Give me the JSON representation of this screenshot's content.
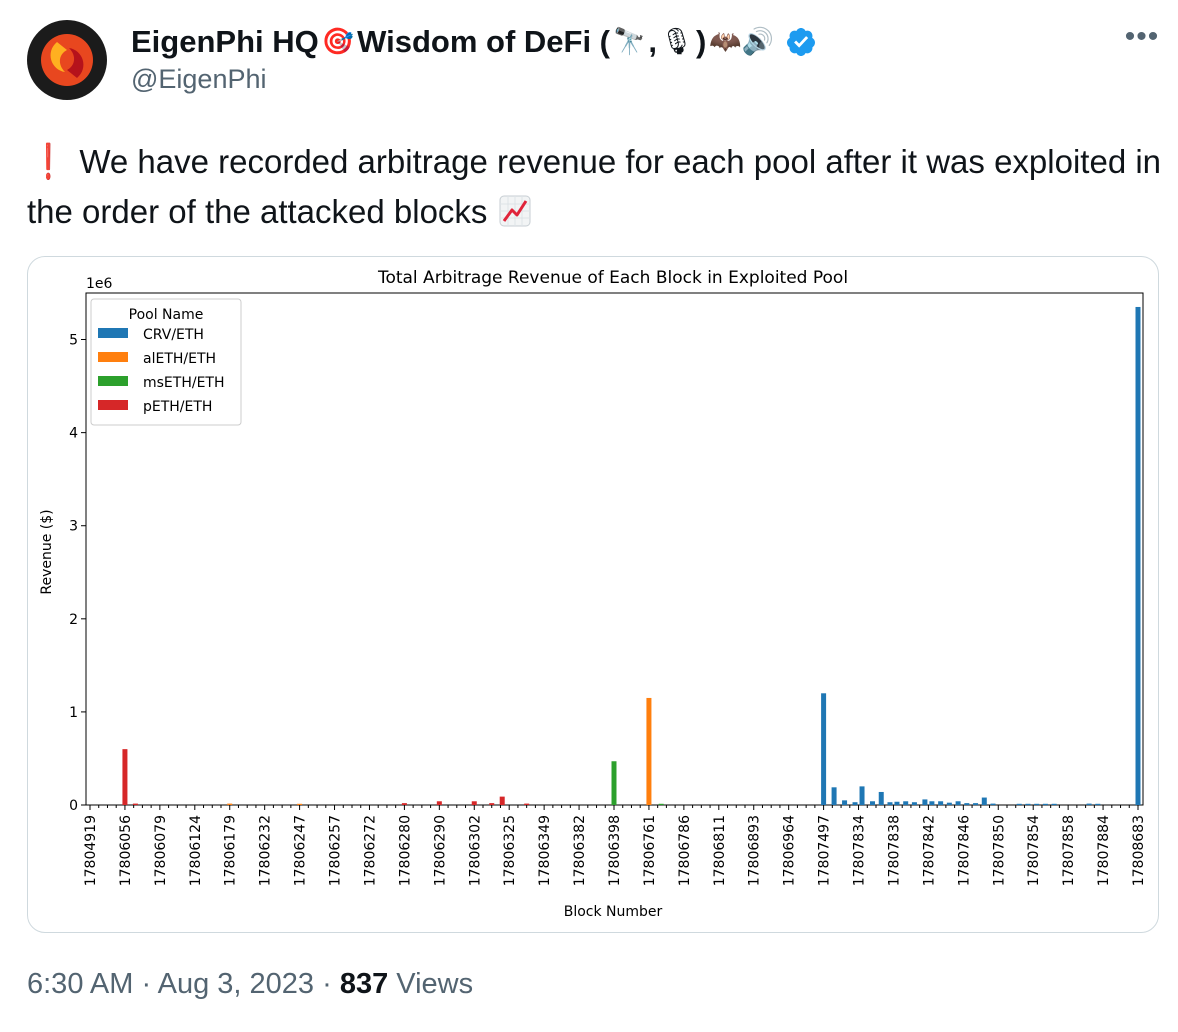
{
  "tweet": {
    "display_name": "EigenPhi HQ",
    "name_emoji_1": "🎯",
    "name_suffix": "Wisdom of DeFi (",
    "name_emoji_2": "🔭",
    "name_sep": ",",
    "name_emoji_3": "🎙",
    "name_close": ")",
    "name_emoji_4": "🦇🔊",
    "handle": "@EigenPhi",
    "more_icon": "more-horizontal-icon",
    "text_exclaim": "❗",
    "text": "We have recorded arbitrage revenue for each pool after it was exploited in the order of the attacked blocks",
    "time": "6:30 AM",
    "date": "Aug 3, 2023",
    "views_count": "837",
    "views_label": "Views",
    "separator": "·",
    "verified_color": "#1d9bf0"
  },
  "chart_data": {
    "type": "bar",
    "title": "Total Arbitrage Revenue of Each Block in Exploited Pool",
    "xlabel": "Block Number",
    "ylabel": "Revenue ($)",
    "y_scale_label": "1e6",
    "ylim": [
      0,
      5500000
    ],
    "yticks": [
      0,
      1,
      2,
      3,
      4,
      5
    ],
    "legend_title": "Pool Name",
    "legend_position": "upper-left",
    "grid": false,
    "x_tick_labels": [
      "17804919",
      "17806056",
      "17806079",
      "17806124",
      "17806179",
      "17806232",
      "17806247",
      "17806257",
      "17806272",
      "17806280",
      "17806290",
      "17806302",
      "17806325",
      "17806349",
      "17806382",
      "17806398",
      "17806761",
      "17806786",
      "17806811",
      "17806893",
      "17806964",
      "17807497",
      "17807834",
      "17807838",
      "17807842",
      "17807846",
      "17807850",
      "17807854",
      "17807858",
      "17807884",
      "17808683"
    ],
    "series": [
      {
        "name": "CRV/ETH",
        "color": "#1f77b4",
        "points": [
          [
            21,
            1200000
          ],
          [
            21.3,
            190000
          ],
          [
            21.6,
            50000
          ],
          [
            21.9,
            30000
          ],
          [
            22.1,
            200000
          ],
          [
            22.4,
            40000
          ],
          [
            22.65,
            140000
          ],
          [
            22.9,
            30000
          ],
          [
            23.1,
            35000
          ],
          [
            23.35,
            40000
          ],
          [
            23.6,
            30000
          ],
          [
            23.9,
            60000
          ],
          [
            24.1,
            40000
          ],
          [
            24.35,
            40000
          ],
          [
            24.6,
            25000
          ],
          [
            24.85,
            40000
          ],
          [
            25.1,
            20000
          ],
          [
            25.35,
            20000
          ],
          [
            25.6,
            80000
          ],
          [
            25.85,
            15000
          ],
          [
            26.6,
            10000
          ],
          [
            26.85,
            10000
          ],
          [
            27.1,
            10000
          ],
          [
            27.35,
            10000
          ],
          [
            27.6,
            10000
          ],
          [
            28.6,
            15000
          ],
          [
            28.85,
            10000
          ],
          [
            30,
            5350000
          ]
        ]
      },
      {
        "name": "alETH/ETH",
        "color": "#ff7f0e",
        "points": [
          [
            16,
            1150000
          ],
          [
            4,
            15000
          ],
          [
            6,
            10000
          ]
        ]
      },
      {
        "name": "msETH/ETH",
        "color": "#2ca02c",
        "points": [
          [
            15,
            470000
          ],
          [
            16.35,
            12000
          ]
        ]
      },
      {
        "name": "pETH/ETH",
        "color": "#d62728",
        "points": [
          [
            1,
            600000
          ],
          [
            1.3,
            15000
          ],
          [
            9,
            20000
          ],
          [
            10,
            40000
          ],
          [
            11,
            40000
          ],
          [
            11.5,
            20000
          ],
          [
            11.8,
            90000
          ],
          [
            12.5,
            15000
          ]
        ]
      }
    ]
  }
}
